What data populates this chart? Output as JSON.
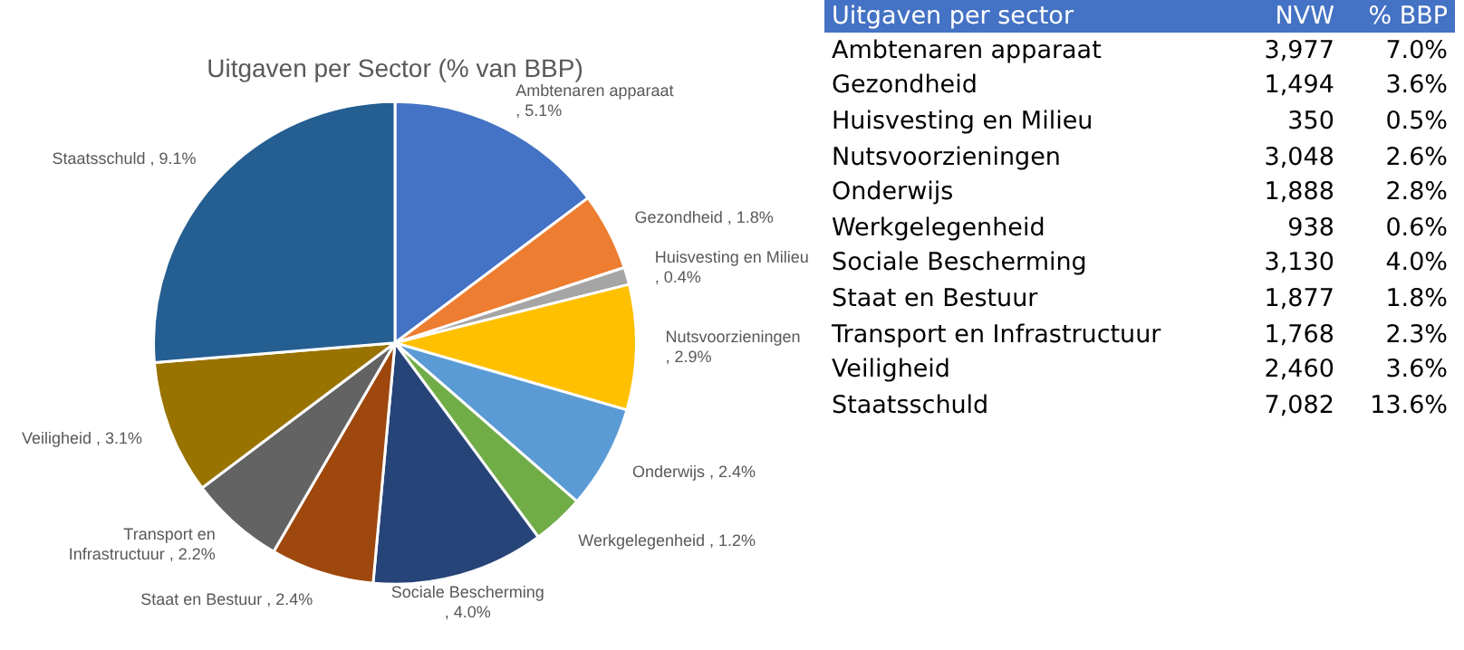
{
  "chart_data": [
    {
      "type": "pie",
      "title": "Uitgaven per Sector (% van BBP)",
      "categories": [
        "Ambtenaren apparaat",
        "Gezondheid",
        "Huisvesting en Milieu",
        "Nutsvoorzieningen",
        "Onderwijs",
        "Werkgelegenheid",
        "Sociale Bescherming",
        "Staat en Bestuur",
        "Transport en Infrastructuur",
        "Veiligheid",
        "Staatsschuld"
      ],
      "values": [
        5.1,
        1.8,
        0.4,
        2.9,
        2.4,
        1.2,
        4.0,
        2.4,
        2.2,
        3.1,
        9.1
      ],
      "value_labels": [
        ", 5.1%",
        ", 1.8%",
        ", 0.4%",
        ", 2.9%",
        ", 2.4%",
        ", 1.2%",
        ", 4.0%",
        ", 2.4%",
        ", 2.2%",
        ", 3.1%",
        ", 9.1%"
      ],
      "colors": [
        "#4472c4",
        "#ed7d31",
        "#a5a5a5",
        "#ffc000",
        "#5b9bd5",
        "#70ad47",
        "#264478",
        "#9e480e",
        "#636363",
        "#997300",
        "#255e91"
      ],
      "legend": false
    },
    {
      "type": "other",
      "title": "Uitgaven per sector",
      "categories": [
        "Ambtenaren apparaat",
        "Gezondheid",
        "Huisvesting en Milieu",
        "Nutsvoorzieningen",
        "Onderwijs",
        "Werkgelegenheid",
        "Sociale Bescherming",
        "Staat en Bestuur",
        "Transport en Infrastructuur",
        "Veiligheid",
        "Staatsschuld"
      ],
      "series": [
        {
          "name": "NVW",
          "values": [
            3977,
            1494,
            350,
            3048,
            1888,
            938,
            3130,
            1877,
            1768,
            2460,
            7082
          ],
          "value_labels": [
            "3,977",
            "1,494",
            "350",
            "3,048",
            "1,888",
            "938",
            "3,130",
            "1,877",
            "1,768",
            "2,460",
            "7,082"
          ]
        },
        {
          "name": "% BBP",
          "values": [
            7.0,
            3.6,
            0.5,
            2.6,
            2.8,
            0.6,
            4.0,
            1.8,
            2.3,
            3.6,
            13.6
          ],
          "value_labels": [
            "7.0%",
            "3.6%",
            "0.5%",
            "2.6%",
            "2.8%",
            "0.6%",
            "4.0%",
            "1.8%",
            "2.3%",
            "3.6%",
            "13.6%"
          ]
        }
      ]
    }
  ]
}
